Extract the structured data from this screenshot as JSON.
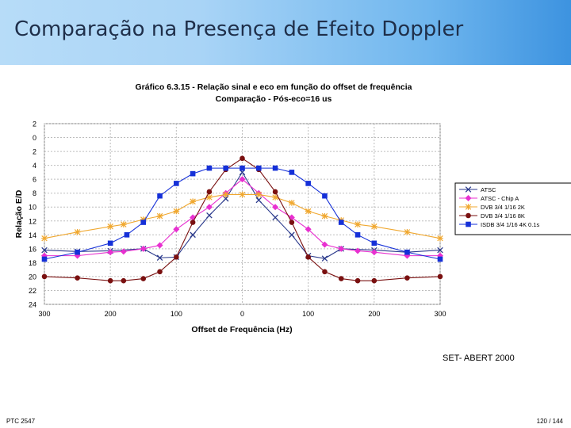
{
  "header": {
    "title": "Comparação na Presença de Efeito Doppler"
  },
  "credit": "SET- ABERT 2000",
  "footer": {
    "left": "PTC 2547",
    "right": "120 / 144"
  },
  "colors": {
    "header_start": "#b7dcf8",
    "header_end": "#3d93e0",
    "title_text": "#1f2f4a"
  },
  "chart_data": {
    "type": "line",
    "title": "Gráfico 6.3.15 - Relação sinal e eco em função do offset de frequência",
    "subtitle": "Comparação - Pós-eco=16 us",
    "xlabel": "Offset de Frequência (Hz)",
    "ylabel": "Relação E/D",
    "xlim": [
      -300,
      300
    ],
    "ylim": [
      -24,
      2
    ],
    "grid": true,
    "x_ticks": [
      -300,
      -200,
      -100,
      0,
      100,
      200,
      300
    ],
    "x_tick_labels": [
      "300",
      "200",
      "100",
      "0",
      "100",
      "200",
      "300"
    ],
    "y_ticks": [
      2,
      0,
      -2,
      -4,
      -6,
      -8,
      -10,
      -12,
      -14,
      -16,
      -18,
      -20,
      -22,
      -24
    ],
    "y_tick_labels": [
      "2",
      "0",
      "2",
      "4",
      "6",
      "8",
      "10",
      "12",
      "14",
      "16",
      "18",
      "20",
      "22",
      "24"
    ],
    "legend_position": "right",
    "series": [
      {
        "name": "ATSC",
        "color": "#2b3a8c",
        "marker": "x",
        "x": [
          -300,
          -250,
          -200,
          -150,
          -125,
          -100,
          -75,
          -50,
          -25,
          0,
          25,
          50,
          75,
          100,
          125,
          150,
          200,
          250,
          300
        ],
        "y": [
          -16.2,
          -16.4,
          -16.3,
          -16.0,
          -17.3,
          -17.2,
          -14.0,
          -11.2,
          -8.8,
          -5.0,
          -9.0,
          -11.5,
          -14.0,
          -17.0,
          -17.4,
          -16.0,
          -16.2,
          -16.5,
          -16.2
        ]
      },
      {
        "name": "ATSC - Chip A",
        "color": "#e830d0",
        "marker": "diamond",
        "x": [
          -300,
          -250,
          -200,
          -180,
          -150,
          -125,
          -100,
          -75,
          -50,
          -25,
          0,
          25,
          50,
          75,
          100,
          125,
          150,
          175,
          200,
          250,
          300
        ],
        "y": [
          -17.0,
          -17.0,
          -16.5,
          -16.4,
          -16.0,
          -15.5,
          -13.2,
          -11.5,
          -10.0,
          -8.0,
          -6.0,
          -8.0,
          -10.0,
          -11.5,
          -13.2,
          -15.4,
          -16.0,
          -16.3,
          -16.5,
          -17.0,
          -17.0
        ]
      },
      {
        "name": "DVB 3/4 1/16 2K",
        "color": "#f0a830",
        "marker": "star",
        "x": [
          -300,
          -250,
          -200,
          -180,
          -150,
          -125,
          -100,
          -75,
          -50,
          -25,
          0,
          25,
          50,
          75,
          100,
          125,
          150,
          175,
          200,
          250,
          300
        ],
        "y": [
          -14.5,
          -13.6,
          -12.8,
          -12.5,
          -11.8,
          -11.3,
          -10.6,
          -9.2,
          -8.6,
          -8.2,
          -8.2,
          -8.2,
          -8.6,
          -9.4,
          -10.6,
          -11.3,
          -11.9,
          -12.5,
          -12.8,
          -13.6,
          -14.5
        ]
      },
      {
        "name": "DVB 3/4 1/16 8K",
        "color": "#7a1010",
        "marker": "circle",
        "x": [
          -300,
          -250,
          -200,
          -180,
          -150,
          -125,
          -100,
          -75,
          -50,
          -25,
          0,
          25,
          50,
          75,
          100,
          125,
          150,
          175,
          200,
          250,
          300
        ],
        "y": [
          -20.0,
          -20.2,
          -20.6,
          -20.6,
          -20.3,
          -19.3,
          -17.2,
          -12.2,
          -7.8,
          -4.6,
          -3.0,
          -4.6,
          -7.8,
          -12.2,
          -17.2,
          -19.3,
          -20.3,
          -20.6,
          -20.6,
          -20.2,
          -20.0
        ]
      },
      {
        "name": "ISDB 3/4 1/16 4K 0.1s",
        "color": "#1530d8",
        "marker": "square",
        "x": [
          -300,
          -250,
          -200,
          -175,
          -150,
          -125,
          -100,
          -75,
          -50,
          -25,
          0,
          25,
          50,
          75,
          100,
          125,
          150,
          175,
          200,
          250,
          300
        ],
        "y": [
          -17.5,
          -16.5,
          -15.2,
          -14.0,
          -12.2,
          -8.4,
          -6.6,
          -5.2,
          -4.4,
          -4.4,
          -4.4,
          -4.4,
          -4.4,
          -5.0,
          -6.6,
          -8.4,
          -12.2,
          -14.0,
          -15.2,
          -16.5,
          -17.5
        ]
      }
    ]
  }
}
